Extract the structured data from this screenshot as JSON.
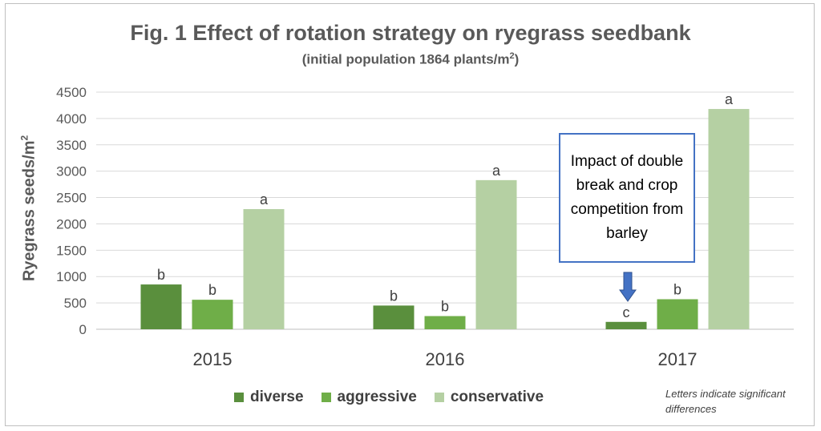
{
  "chart_data": {
    "type": "bar",
    "title": "Fig. 1 Effect of rotation strategy on ryegrass seedbank",
    "subtitle_prefix": "(initial population 1864 plants/m",
    "subtitle_sup": "2",
    "subtitle_suffix": ")",
    "ylabel_text": "Ryegrass seeds/m",
    "ylabel_sup": "2",
    "xlabel": "",
    "categories": [
      "2015",
      "2016",
      "2017"
    ],
    "ylim": [
      0,
      4500
    ],
    "yticks": [
      0,
      500,
      1000,
      1500,
      2000,
      2500,
      3000,
      3500,
      4000,
      4500
    ],
    "grid": true,
    "legend_position": "bottom",
    "series": [
      {
        "name": "diverse",
        "color": "#5a8f3d",
        "values": [
          850,
          450,
          140
        ],
        "letters": [
          "b",
          "b",
          "c"
        ]
      },
      {
        "name": "aggressive",
        "color": "#6fae48",
        "values": [
          560,
          250,
          570
        ],
        "letters": [
          "b",
          "b",
          "b"
        ]
      },
      {
        "name": "conservative",
        "color": "#b5d0a3",
        "values": [
          2280,
          2830,
          4180
        ],
        "letters": [
          "a",
          "a",
          "a"
        ]
      }
    ],
    "annotation": "Impact of double break and crop competition from barley",
    "note": "Letters indicate significant differences"
  }
}
